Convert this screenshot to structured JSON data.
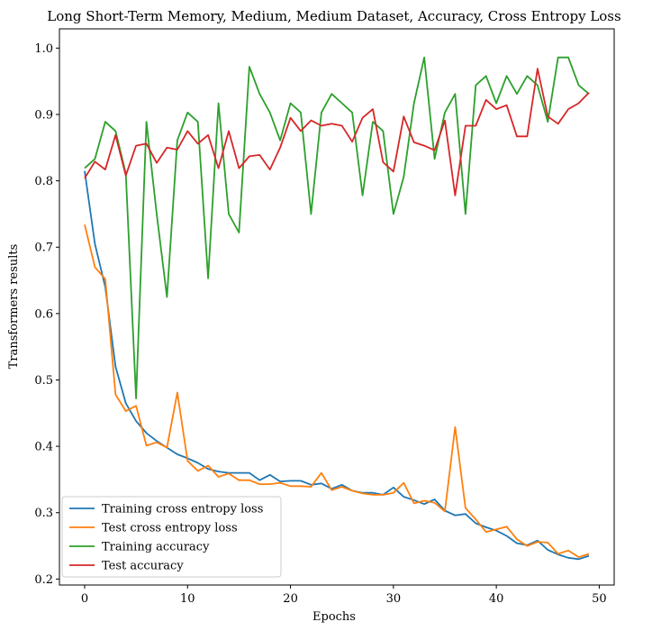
{
  "chart_data": {
    "type": "line",
    "title": "Long Short-Term Memory, Medium, Medium Dataset, Accuracy, Cross Entropy Loss",
    "xlabel": "Epochs",
    "ylabel": "Transformers results",
    "xlim": [
      -2.45,
      51.45
    ],
    "ylim": [
      0.191,
      1.029
    ],
    "xticks": [
      0,
      10,
      20,
      30,
      40,
      50
    ],
    "yticks": [
      0.2,
      0.3,
      0.4,
      0.5,
      0.6,
      0.7,
      0.8,
      0.9,
      1.0
    ],
    "legend_position": "lower-left",
    "grid": false,
    "x": [
      0,
      1,
      2,
      3,
      4,
      5,
      6,
      7,
      8,
      9,
      10,
      11,
      12,
      13,
      14,
      15,
      16,
      17,
      18,
      19,
      20,
      21,
      22,
      23,
      24,
      25,
      26,
      27,
      28,
      29,
      30,
      31,
      32,
      33,
      34,
      35,
      36,
      37,
      38,
      39,
      40,
      41,
      42,
      43,
      44,
      45,
      46,
      47,
      48,
      49
    ],
    "series": [
      {
        "name": "Training cross entropy loss",
        "color": "#1f77b4",
        "values": [
          0.815,
          0.705,
          0.64,
          0.52,
          0.465,
          0.438,
          0.42,
          0.408,
          0.398,
          0.388,
          0.382,
          0.375,
          0.366,
          0.362,
          0.36,
          0.36,
          0.36,
          0.349,
          0.357,
          0.347,
          0.348,
          0.348,
          0.342,
          0.344,
          0.336,
          0.342,
          0.333,
          0.33,
          0.33,
          0.327,
          0.338,
          0.324,
          0.319,
          0.313,
          0.32,
          0.303,
          0.296,
          0.298,
          0.284,
          0.278,
          0.273,
          0.265,
          0.254,
          0.251,
          0.258,
          0.244,
          0.237,
          0.232,
          0.23,
          0.235
        ]
      },
      {
        "name": "Test cross entropy loss",
        "color": "#ff7f0e",
        "values": [
          0.734,
          0.67,
          0.652,
          0.478,
          0.453,
          0.461,
          0.401,
          0.406,
          0.398,
          0.481,
          0.378,
          0.363,
          0.371,
          0.354,
          0.359,
          0.349,
          0.349,
          0.343,
          0.343,
          0.345,
          0.34,
          0.34,
          0.339,
          0.36,
          0.334,
          0.339,
          0.333,
          0.329,
          0.327,
          0.327,
          0.33,
          0.345,
          0.314,
          0.318,
          0.315,
          0.302,
          0.429,
          0.307,
          0.29,
          0.271,
          0.275,
          0.279,
          0.26,
          0.25,
          0.256,
          0.255,
          0.238,
          0.243,
          0.233,
          0.238
        ]
      },
      {
        "name": "Training accuracy",
        "color": "#2ca02c",
        "values": [
          0.819,
          0.833,
          0.889,
          0.875,
          0.811,
          0.472,
          0.889,
          0.75,
          0.625,
          0.861,
          0.903,
          0.889,
          0.653,
          0.917,
          0.75,
          0.722,
          0.972,
          0.931,
          0.903,
          0.861,
          0.917,
          0.903,
          0.75,
          0.903,
          0.931,
          0.917,
          0.903,
          0.778,
          0.889,
          0.875,
          0.75,
          0.806,
          0.917,
          0.986,
          0.833,
          0.903,
          0.931,
          0.75,
          0.944,
          0.958,
          0.917,
          0.958,
          0.931,
          0.958,
          0.944,
          0.889,
          0.986,
          0.986,
          0.944,
          0.931
        ]
      },
      {
        "name": "Test accuracy",
        "color": "#d62728",
        "values": [
          0.804,
          0.829,
          0.817,
          0.869,
          0.808,
          0.853,
          0.856,
          0.827,
          0.85,
          0.847,
          0.875,
          0.856,
          0.869,
          0.819,
          0.875,
          0.819,
          0.837,
          0.839,
          0.817,
          0.85,
          0.895,
          0.875,
          0.891,
          0.883,
          0.886,
          0.883,
          0.859,
          0.895,
          0.908,
          0.828,
          0.814,
          0.897,
          0.858,
          0.853,
          0.846,
          0.891,
          0.778,
          0.883,
          0.883,
          0.922,
          0.908,
          0.914,
          0.867,
          0.867,
          0.969,
          0.897,
          0.886,
          0.908,
          0.917,
          0.933
        ]
      }
    ]
  }
}
